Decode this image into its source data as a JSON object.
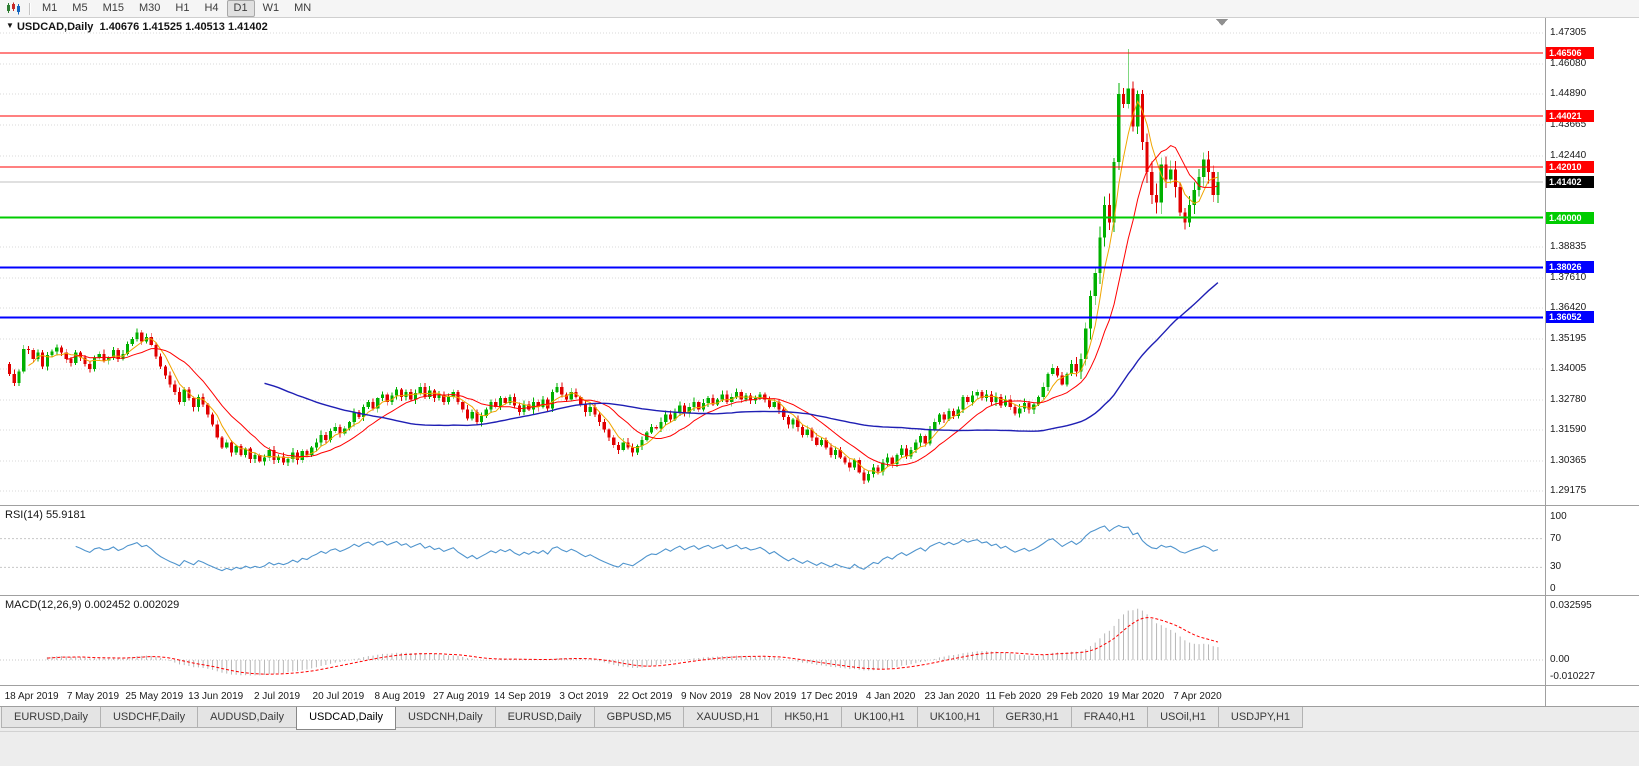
{
  "toolbar": {
    "timeframes": [
      "M1",
      "M5",
      "M15",
      "M30",
      "H1",
      "H4",
      "D1",
      "W1",
      "MN"
    ],
    "active_timeframe": "D1"
  },
  "chart": {
    "collapse_icon": "▼",
    "title": "USDCAD,Daily",
    "ohlc": "1.40676 1.41525 1.40513 1.41402"
  },
  "colors": {
    "up_candle": "#00b000",
    "down_candle": "#e00000",
    "grid": "#dadada",
    "rsi_line": "#4f94cd",
    "macd_hist": "#b6b6b6",
    "macd_signal": "#ff0000",
    "last_price_bg": "#000000",
    "last_price_line": "#c0c0c0"
  },
  "chart_data": {
    "type": "candlestick",
    "title": "USDCAD,Daily",
    "x_labels": [
      "18 Apr 2019",
      "7 May 2019",
      "25 May 2019",
      "13 Jun 2019",
      "2 Jul 2019",
      "20 Jul 2019",
      "8 Aug 2019",
      "27 Aug 2019",
      "14 Sep 2019",
      "3 Oct 2019",
      "22 Oct 2019",
      "9 Nov 2019",
      "28 Nov 2019",
      "17 Dec 2019",
      "4 Jan 2020",
      "23 Jan 2020",
      "11 Feb 2020",
      "29 Feb 2020",
      "19 Mar 2020",
      "7 Apr 2020"
    ],
    "y_ticks": [
      "1.47305",
      "1.46080",
      "1.44890",
      "1.43665",
      "1.42440",
      "1.38835",
      "1.37610",
      "1.36420",
      "1.35195",
      "1.34005",
      "1.32780",
      "1.31590",
      "1.30365",
      "1.29175"
    ],
    "closes": [
      1.338,
      1.3345,
      1.339,
      1.348,
      1.3475,
      1.344,
      1.3465,
      1.341,
      1.3455,
      1.347,
      1.3485,
      1.3465,
      1.344,
      1.3425,
      1.3465,
      1.3445,
      1.342,
      1.34,
      1.3445,
      1.346,
      1.3435,
      1.3445,
      1.3475,
      1.344,
      1.346,
      1.35,
      1.352,
      1.3545,
      1.351,
      1.3527,
      1.3495,
      1.345,
      1.341,
      1.3375,
      1.334,
      1.331,
      1.327,
      1.332,
      1.3285,
      1.325,
      1.329,
      1.326,
      1.322,
      1.318,
      1.313,
      1.309,
      1.311,
      1.307,
      1.3095,
      1.306,
      1.3085,
      1.3045,
      1.306,
      1.3035,
      1.305,
      1.308,
      1.304,
      1.3055,
      1.303,
      1.3045,
      1.307,
      1.304,
      1.3075,
      1.306,
      1.309,
      1.311,
      1.314,
      1.312,
      1.3155,
      1.317,
      1.3145,
      1.3165,
      1.319,
      1.323,
      1.321,
      1.325,
      1.327,
      1.3245,
      1.3285,
      1.33,
      1.327,
      1.3295,
      1.332,
      1.329,
      1.331,
      1.328,
      1.3305,
      1.333,
      1.329,
      1.3315,
      1.3285,
      1.33,
      1.327,
      1.329,
      1.331,
      1.327,
      1.324,
      1.3205,
      1.323,
      1.319,
      1.3215,
      1.324,
      1.327,
      1.325,
      1.3285,
      1.3265,
      1.329,
      1.3255,
      1.323,
      1.326,
      1.324,
      1.327,
      1.325,
      1.328,
      1.3245,
      1.331,
      1.333,
      1.33,
      1.328,
      1.331,
      1.329,
      1.326,
      1.323,
      1.325,
      1.322,
      1.319,
      1.316,
      1.313,
      1.31,
      1.308,
      1.311,
      1.309,
      1.307,
      1.3095,
      1.312,
      1.315,
      1.317,
      1.3165,
      1.319,
      1.322,
      1.32,
      1.323,
      1.3255,
      1.3225,
      1.325,
      1.327,
      1.324,
      1.3265,
      1.3285,
      1.326,
      1.328,
      1.33,
      1.327,
      1.329,
      1.331,
      1.328,
      1.3295,
      1.3275,
      1.3285,
      1.33,
      1.328,
      1.325,
      1.327,
      1.324,
      1.321,
      1.318,
      1.32,
      1.317,
      1.314,
      1.316,
      1.313,
      1.31,
      1.312,
      1.309,
      1.306,
      1.308,
      1.305,
      1.303,
      1.301,
      1.304,
      1.299,
      1.296,
      1.2985,
      1.301,
      1.2995,
      1.303,
      1.305,
      1.3025,
      1.306,
      1.3085,
      1.3055,
      1.308,
      1.311,
      1.3135,
      1.3105,
      1.316,
      1.319,
      1.322,
      1.32,
      1.3235,
      1.3215,
      1.324,
      1.329,
      1.327,
      1.3295,
      1.331,
      1.3285,
      1.33,
      1.327,
      1.329,
      1.3255,
      1.328,
      1.325,
      1.3225,
      1.3245,
      1.3265,
      1.324,
      1.326,
      1.329,
      1.333,
      1.338,
      1.3405,
      1.3375,
      1.334,
      1.338,
      1.342,
      1.339,
      1.344,
      1.356,
      1.369,
      1.378,
      1.392,
      1.405,
      1.398,
      1.422,
      1.449,
      1.445,
      1.451,
      1.436,
      1.449,
      1.43,
      1.418,
      1.409,
      1.406,
      1.421,
      1.415,
      1.419,
      1.412,
      1.402,
      1.398,
      1.405,
      1.411,
      1.416,
      1.423,
      1.418,
      1.409,
      1.414
    ],
    "year_high": 1.4668,
    "last_price": 1.41402,
    "last_price_label": "1.41402",
    "hlines": [
      {
        "price": 1.46506,
        "label": "1.46506",
        "color": "#ff0000",
        "width": 1
      },
      {
        "price": 1.44021,
        "label": "1.44021",
        "color": "#ff0000",
        "width": 1
      },
      {
        "price": 1.4201,
        "label": "1.42010",
        "color": "#ff0000",
        "width": 1
      },
      {
        "price": 1.4,
        "label": "1.40000",
        "color": "#00cc00",
        "width": 2
      },
      {
        "price": 1.38026,
        "label": "1.38026",
        "color": "#0000ff",
        "width": 2
      },
      {
        "price": 1.36052,
        "label": "1.36052",
        "color": "#0000ff",
        "width": 2
      }
    ],
    "moving_averages": [
      {
        "period": 5,
        "color": "#f0a500",
        "width": 1
      },
      {
        "period": 13,
        "color": "#ff0000",
        "width": 1
      },
      {
        "period": 55,
        "color": "#1f1fb4",
        "width": 1.4
      }
    ],
    "rsi": {
      "label": "RSI(14) 55.9181",
      "period": 14,
      "current": 55.9181,
      "levels": [
        70,
        30
      ],
      "axis_labels": [
        "100",
        "70",
        "30",
        "0"
      ]
    },
    "macd": {
      "label": "MACD(12,26,9) 0.002452 0.002029",
      "fast": 12,
      "slow": 26,
      "signal": 9,
      "current_main": 0.002452,
      "current_signal": 0.002029,
      "axis_labels": [
        "0.032595",
        "0.00",
        "-0.010227"
      ]
    }
  },
  "tabs": [
    "EURUSD,Daily",
    "USDCHF,Daily",
    "AUDUSD,Daily",
    "USDCAD,Daily",
    "USDCNH,Daily",
    "EURUSD,Daily",
    "GBPUSD,M5",
    "XAUUSD,H1",
    "HK50,H1",
    "UK100,H1",
    "UK100,H1",
    "GER30,H1",
    "FRA40,H1",
    "USOil,H1",
    "USDJPY,H1"
  ],
  "active_tab_index": 3
}
